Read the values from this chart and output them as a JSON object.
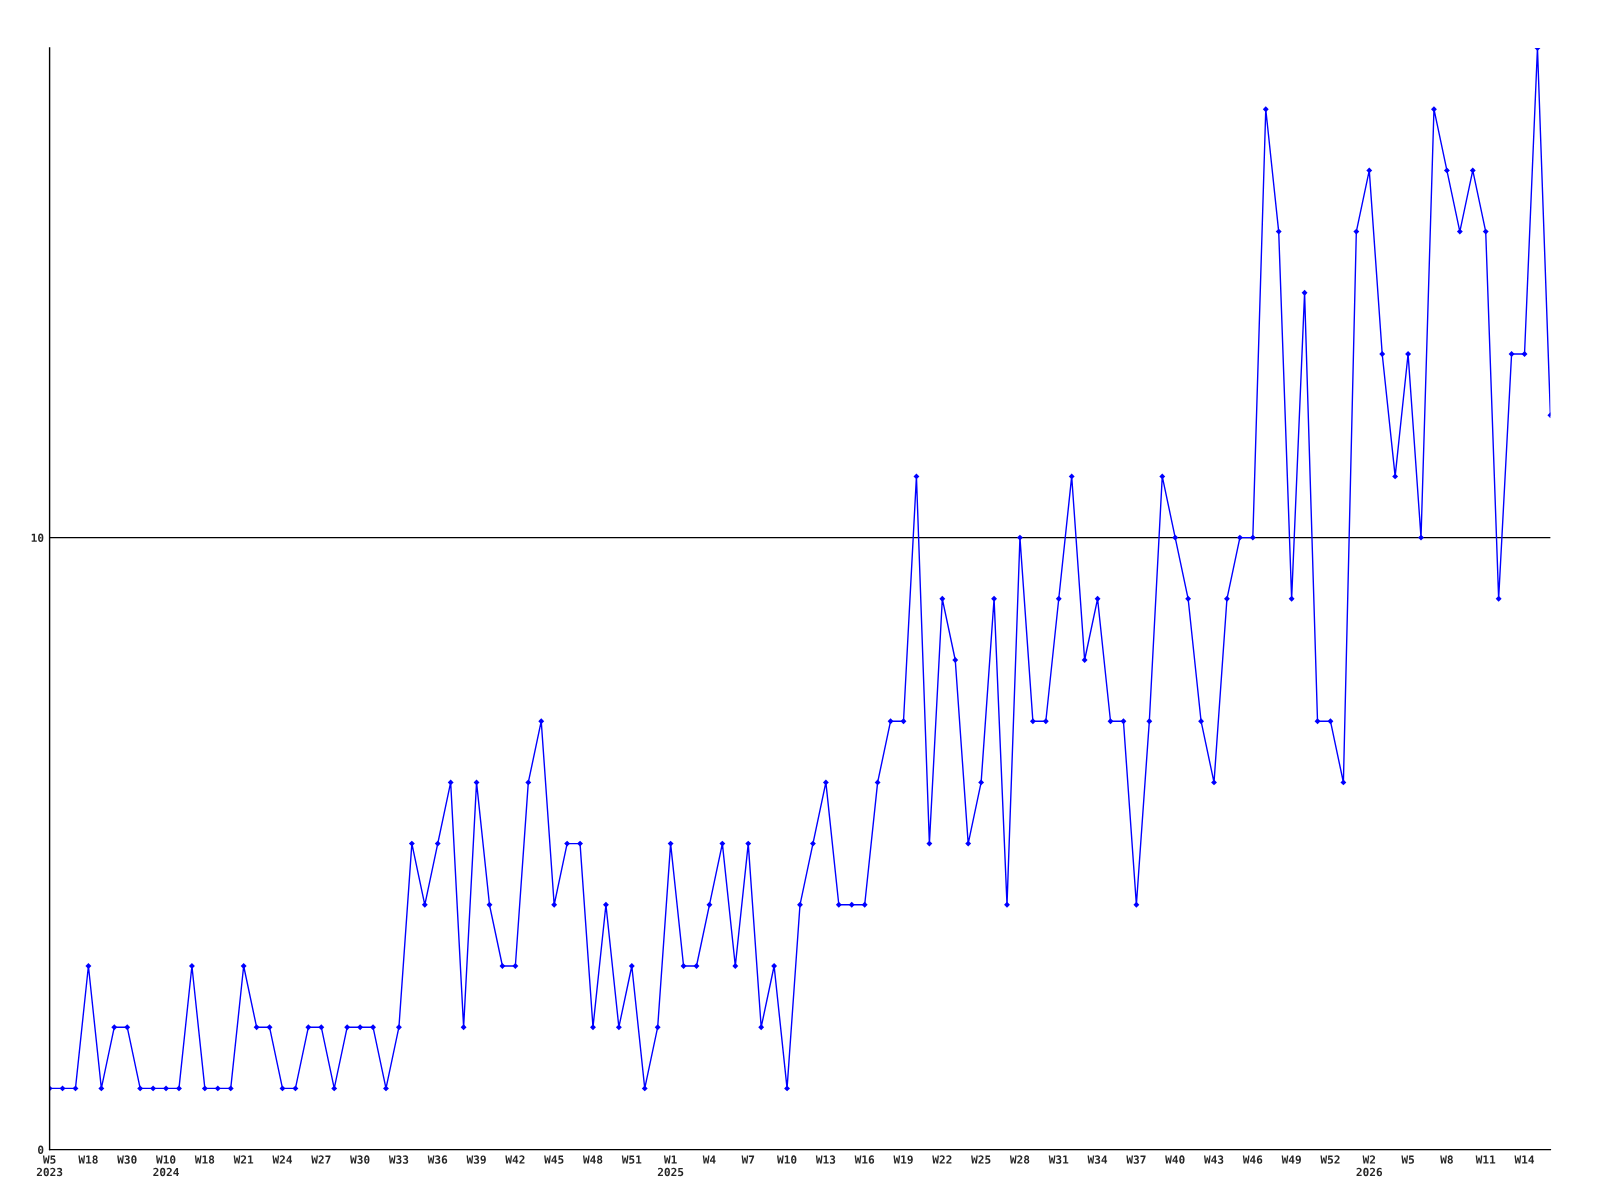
{
  "chart_data": {
    "type": "line",
    "categories": [
      "W5\n2023",
      null,
      null,
      "W18",
      null,
      null,
      "W30",
      null,
      null,
      "W10\n2024",
      null,
      null,
      "W18",
      null,
      null,
      "W21",
      null,
      null,
      "W24",
      null,
      null,
      "W27",
      null,
      null,
      "W30",
      null,
      null,
      "W33",
      null,
      null,
      "W36",
      null,
      null,
      "W39",
      null,
      null,
      "W42",
      null,
      null,
      "W45",
      null,
      null,
      "W48",
      null,
      null,
      "W51",
      null,
      null,
      "W1\n2025",
      null,
      null,
      "W4",
      null,
      null,
      "W7",
      null,
      null,
      "W10",
      null,
      null,
      "W13",
      null,
      null,
      "W16",
      null,
      null,
      "W19",
      null,
      null,
      "W22",
      null,
      null,
      "W25",
      null,
      null,
      "W28",
      null,
      null,
      "W31",
      null,
      null,
      "W34",
      null,
      null,
      "W37",
      null,
      null,
      "W40",
      null,
      null,
      "W43",
      null,
      null,
      "W46",
      null,
      null,
      "W49",
      null,
      null,
      "W52",
      null,
      null,
      "W2\n2026",
      null,
      null,
      "W5",
      null,
      null,
      "W8",
      null,
      null,
      "W11",
      null,
      null,
      "W14",
      null,
      null
    ],
    "series": [
      {
        "color": "#0000ff",
        "values": [
          1,
          1,
          1,
          3,
          1,
          2,
          2,
          1,
          1,
          1,
          1,
          3,
          1,
          1,
          1,
          3,
          2,
          2,
          1,
          1,
          2,
          2,
          1,
          2,
          2,
          2,
          1,
          2,
          5,
          4,
          5,
          6,
          2,
          6,
          4,
          3,
          3,
          6,
          7,
          4,
          5,
          5,
          2,
          4,
          2,
          3,
          1,
          2,
          5,
          3,
          3,
          4,
          5,
          3,
          5,
          2,
          3,
          1,
          4,
          5,
          6,
          4,
          4,
          4,
          6,
          7,
          7,
          11,
          5,
          9,
          8,
          5,
          6,
          9,
          4,
          10,
          7,
          7,
          9,
          11,
          8,
          9,
          7,
          7,
          4,
          7,
          11,
          10,
          9,
          7,
          6,
          9,
          10,
          10,
          17,
          15,
          9,
          14,
          7,
          7,
          6,
          15,
          16,
          13,
          11,
          13,
          10,
          17,
          16,
          15,
          16,
          15,
          9,
          13,
          13,
          18,
          12
        ]
      }
    ],
    "ylim": [
      0,
      18
    ],
    "yticks": [
      0,
      10
    ],
    "grid": "y",
    "marker": "diamond",
    "line_style": "solid"
  }
}
